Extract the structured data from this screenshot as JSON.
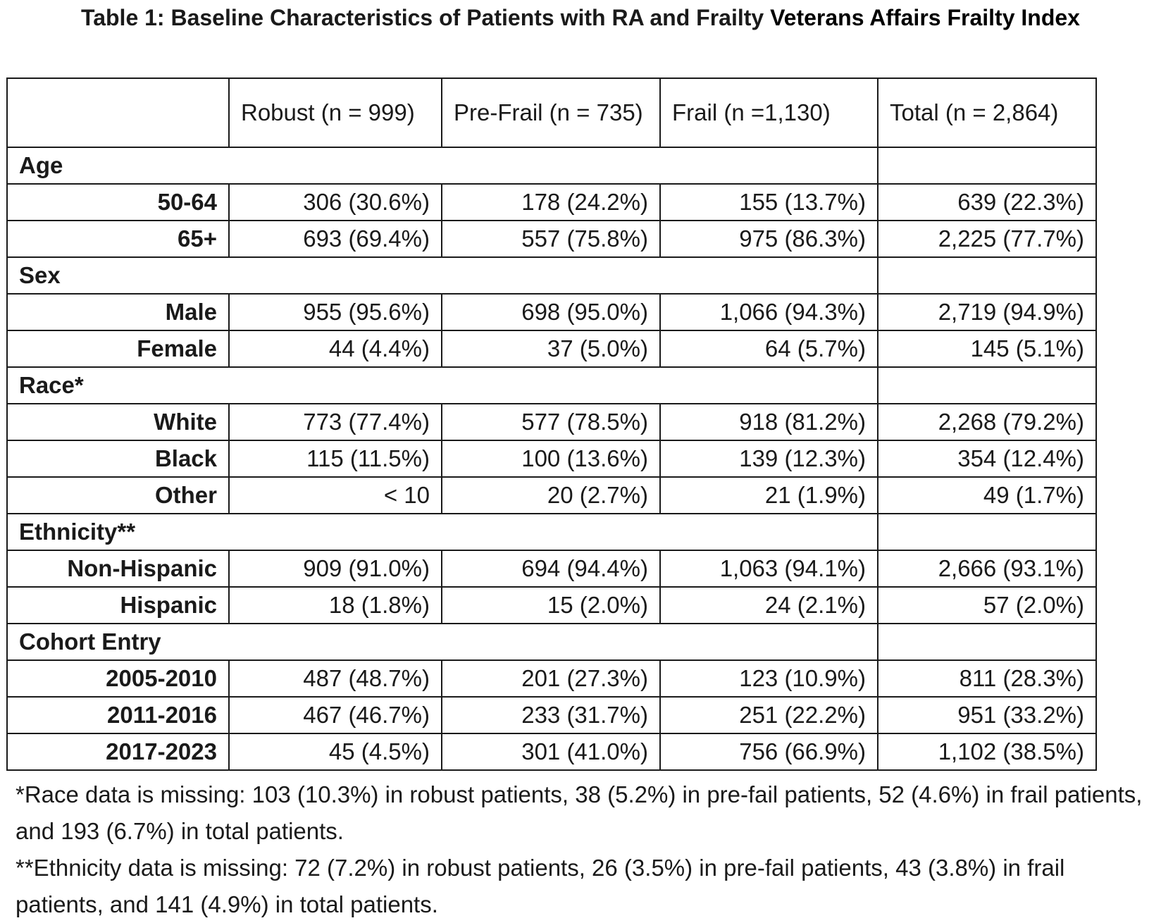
{
  "title": {
    "part1": "Table 1: Baseline Characteristics of Patients with RA and Frailty",
    "part2": "Veterans Affairs Frailty Index"
  },
  "table": {
    "headers": [
      "",
      "Robust (n = 999)",
      "Pre-Frail (n = 735)",
      "Frail (n =1,130)",
      "Total (n = 2,864)"
    ],
    "sections": [
      {
        "label": "Age",
        "rows": [
          {
            "label": "50-64",
            "values": [
              "306 (30.6%)",
              "178 (24.2%)",
              "155 (13.7%)",
              "639 (22.3%)"
            ]
          },
          {
            "label": "65+",
            "values": [
              "693 (69.4%)",
              "557 (75.8%)",
              "975 (86.3%)",
              "2,225 (77.7%)"
            ]
          }
        ]
      },
      {
        "label": "Sex",
        "rows": [
          {
            "label": "Male",
            "values": [
              "955 (95.6%)",
              "698 (95.0%)",
              "1,066 (94.3%)",
              "2,719 (94.9%)"
            ]
          },
          {
            "label": "Female",
            "values": [
              "44 (4.4%)",
              "37 (5.0%)",
              "64 (5.7%)",
              "145 (5.1%)"
            ]
          }
        ]
      },
      {
        "label": "Race*",
        "rows": [
          {
            "label": "White",
            "values": [
              "773 (77.4%)",
              "577 (78.5%)",
              "918 (81.2%)",
              "2,268 (79.2%)"
            ]
          },
          {
            "label": "Black",
            "values": [
              "115 (11.5%)",
              "100 (13.6%)",
              "139 (12.3%)",
              "354 (12.4%)"
            ]
          },
          {
            "label": "Other",
            "values": [
              "< 10",
              "20 (2.7%)",
              "21 (1.9%)",
              "49 (1.7%)"
            ]
          }
        ]
      },
      {
        "label": "Ethnicity**",
        "rows": [
          {
            "label": "Non-Hispanic",
            "values": [
              "909 (91.0%)",
              "694 (94.4%)",
              "1,063 (94.1%)",
              "2,666 (93.1%)"
            ]
          },
          {
            "label": "Hispanic",
            "values": [
              "18 (1.8%)",
              "15 (2.0%)",
              "24 (2.1%)",
              "57 (2.0%)"
            ]
          }
        ]
      },
      {
        "label": "Cohort Entry",
        "rows": [
          {
            "label": "2005-2010",
            "values": [
              "487 (48.7%)",
              "201 (27.3%)",
              "123 (10.9%)",
              "811 (28.3%)"
            ]
          },
          {
            "label": "2011-2016",
            "values": [
              "467 (46.7%)",
              "233 (31.7%)",
              "251 (22.2%)",
              "951 (33.2%)"
            ]
          },
          {
            "label": "2017-2023",
            "values": [
              "45 (4.5%)",
              "301 (41.0%)",
              "756 (66.9%)",
              "1,102 (38.5%)"
            ]
          }
        ]
      }
    ]
  },
  "footnotes": [
    "*Race data is missing: 103 (10.3%) in robust patients, 38 (5.2%) in pre-fail patients, 52 (4.6%) in frail patients, and 193 (6.7%) in total patients.",
    "**Ethnicity data is missing: 72 (7.2%) in robust patients, 26 (3.5%) in pre-fail patients, 43 (3.8%) in frail patients, and 141 (4.9%) in total patients."
  ]
}
